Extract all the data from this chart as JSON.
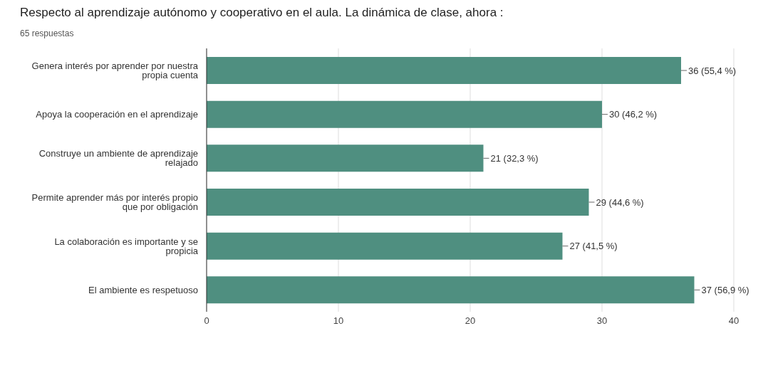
{
  "chart_data": {
    "type": "bar",
    "orientation": "horizontal",
    "title": "Respecto al aprendizaje autónomo y cooperativo en el aula. La dinámica de clase, ahora :",
    "subtitle": "65 respuestas",
    "categories": [
      "Genera interés por aprender por nuestra propia cuenta",
      "Apoya la cooperación en el aprendizaje",
      "Construye un ambiente de aprendizaje relajado",
      "Permite aprender más por interés propio que por obligación",
      "La colaboración es importante y se propicia",
      "El ambiente es respetuoso"
    ],
    "values": [
      36,
      30,
      21,
      29,
      27,
      37
    ],
    "value_labels": [
      "36 (55,4 %)",
      "30 (46,2 %)",
      "21 (32,3 %)",
      "29 (44,6 %)",
      "27 (41,5 %)",
      "37 (56,9 %)"
    ],
    "color": "#4f8f80",
    "xlim": [
      0,
      40
    ],
    "xticks": [
      0,
      10,
      20,
      30,
      40
    ],
    "grid": "x",
    "legend": false
  }
}
